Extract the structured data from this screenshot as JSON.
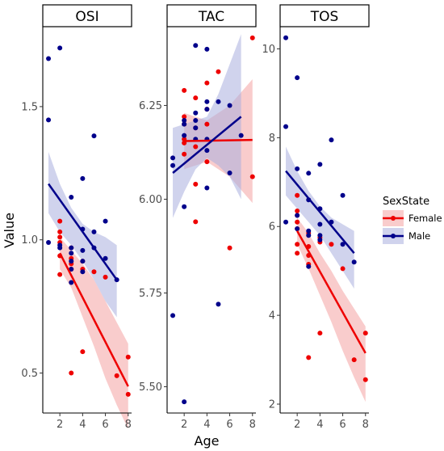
{
  "chart_data": {
    "type": "scatter",
    "xlabel": "Age",
    "ylabel": "Value",
    "legend": {
      "title": "SexState",
      "position": "right",
      "entries": [
        {
          "name": "Female",
          "color": "#ee0000",
          "band_color": "#f4a3a3"
        },
        {
          "name": "Male",
          "color": "#00008b",
          "band_color": "#a9aede"
        }
      ]
    },
    "grid": false,
    "panels": [
      {
        "title": "OSI",
        "xlim": [
          0.5,
          8.3
        ],
        "ylim": [
          0.35,
          1.8
        ],
        "xticks": [
          2,
          4,
          6,
          8
        ],
        "xtick_labels": [
          "2",
          "4",
          "6",
          "8"
        ],
        "yticks": [
          0.5,
          1.0,
          1.5
        ],
        "ytick_labels": [
          "0.5",
          "1.0",
          "1.5"
        ],
        "series": [
          {
            "name": "Female",
            "points": [
              [
                2,
                1.07
              ],
              [
                2,
                1.03
              ],
              [
                2,
                1.01
              ],
              [
                2,
                0.99
              ],
              [
                2,
                0.94
              ],
              [
                2,
                0.87
              ],
              [
                3,
                0.97
              ],
              [
                3,
                0.93
              ],
              [
                3,
                0.91
              ],
              [
                3,
                0.89
              ],
              [
                3,
                0.5
              ],
              [
                4,
                0.92
              ],
              [
                4,
                0.89
              ],
              [
                4,
                0.58
              ],
              [
                5,
                0.88
              ],
              [
                6,
                0.86
              ],
              [
                7,
                0.49
              ],
              [
                8,
                0.56
              ],
              [
                8,
                0.42
              ]
            ],
            "fit": {
              "x": [
                2,
                8
              ],
              "y": [
                0.95,
                0.45
              ]
            },
            "ci_upper": [
              [
                2,
                1.01
              ],
              [
                3,
                0.96
              ],
              [
                4,
                0.91
              ],
              [
                5,
                0.85
              ],
              [
                6,
                0.77
              ],
              [
                7,
                0.69
              ],
              [
                8,
                0.61
              ]
            ],
            "ci_lower": [
              [
                2,
                0.89
              ],
              [
                3,
                0.82
              ],
              [
                4,
                0.71
              ],
              [
                5,
                0.6
              ],
              [
                6,
                0.48
              ],
              [
                7,
                0.38
              ],
              [
                8,
                0.29
              ]
            ]
          },
          {
            "name": "Male",
            "points": [
              [
                1,
                1.68
              ],
              [
                1,
                1.45
              ],
              [
                1,
                0.99
              ],
              [
                2,
                1.72
              ],
              [
                2,
                0.98
              ],
              [
                2,
                0.97
              ],
              [
                3,
                1.16
              ],
              [
                3,
                0.97
              ],
              [
                3,
                0.95
              ],
              [
                3,
                0.92
              ],
              [
                3,
                0.89
              ],
              [
                3,
                0.84
              ],
              [
                4,
                1.23
              ],
              [
                4,
                1.04
              ],
              [
                4,
                0.96
              ],
              [
                4,
                0.92
              ],
              [
                4,
                0.88
              ],
              [
                5,
                1.39
              ],
              [
                5,
                1.03
              ],
              [
                5,
                0.97
              ],
              [
                6,
                1.07
              ],
              [
                6,
                0.93
              ],
              [
                7,
                0.85
              ]
            ],
            "fit": {
              "x": [
                1,
                7
              ],
              "y": [
                1.21,
                0.85
              ]
            },
            "ci_upper": [
              [
                1,
                1.33
              ],
              [
                2,
                1.21
              ],
              [
                3,
                1.12
              ],
              [
                4,
                1.06
              ],
              [
                5,
                1.03
              ],
              [
                6,
                1.01
              ],
              [
                7,
                0.98
              ]
            ],
            "ci_lower": [
              [
                1,
                1.1
              ],
              [
                2,
                1.03
              ],
              [
                3,
                0.98
              ],
              [
                4,
                0.92
              ],
              [
                5,
                0.85
              ],
              [
                6,
                0.77
              ],
              [
                7,
                0.71
              ]
            ]
          }
        ]
      },
      {
        "title": "TAC",
        "xlim": [
          0.5,
          8.3
        ],
        "ylim": [
          5.43,
          6.46
        ],
        "xticks": [
          2,
          4,
          6,
          8
        ],
        "xtick_labels": [
          "2",
          "4",
          "6",
          "8"
        ],
        "yticks": [
          5.5,
          5.75,
          6.0,
          6.25
        ],
        "ytick_labels": [
          "5.50",
          "5.75",
          "6.00",
          "6.25"
        ],
        "series": [
          {
            "name": "Female",
            "points": [
              [
                2,
                6.29
              ],
              [
                2,
                6.22
              ],
              [
                2,
                6.2
              ],
              [
                2,
                6.16
              ],
              [
                2,
                6.15
              ],
              [
                2,
                6.12
              ],
              [
                3,
                6.27
              ],
              [
                3,
                6.19
              ],
              [
                3,
                6.14
              ],
              [
                3,
                6.04
              ],
              [
                3,
                5.94
              ],
              [
                4,
                6.31
              ],
              [
                4,
                6.24
              ],
              [
                4,
                6.2
              ],
              [
                4,
                6.1
              ],
              [
                5,
                6.34
              ],
              [
                6,
                5.87
              ],
              [
                8,
                6.43
              ],
              [
                8,
                6.06
              ]
            ],
            "fit": {
              "x": [
                2,
                8
              ],
              "y": [
                6.155,
                6.158
              ]
            },
            "ci_upper": [
              [
                2,
                6.23
              ],
              [
                4,
                6.21
              ],
              [
                6,
                6.25
              ],
              [
                8,
                6.32
              ]
            ],
            "ci_lower": [
              [
                2,
                6.08
              ],
              [
                4,
                6.1
              ],
              [
                6,
                6.06
              ],
              [
                8,
                5.99
              ]
            ]
          },
          {
            "name": "Male",
            "points": [
              [
                1,
                6.11
              ],
              [
                1,
                6.09
              ],
              [
                1,
                5.69
              ],
              [
                2,
                6.21
              ],
              [
                2,
                6.2
              ],
              [
                2,
                6.17
              ],
              [
                2,
                5.98
              ],
              [
                2,
                5.46
              ],
              [
                3,
                6.41
              ],
              [
                3,
                6.23
              ],
              [
                3,
                6.21
              ],
              [
                3,
                6.19
              ],
              [
                3,
                6.16
              ],
              [
                4,
                6.4
              ],
              [
                4,
                6.26
              ],
              [
                4,
                6.24
              ],
              [
                4,
                6.16
              ],
              [
                4,
                6.13
              ],
              [
                4,
                6.03
              ],
              [
                5,
                6.26
              ],
              [
                5,
                5.72
              ],
              [
                6,
                6.25
              ],
              [
                6,
                6.07
              ],
              [
                7,
                6.17
              ]
            ],
            "fit": {
              "x": [
                1,
                7
              ],
              "y": [
                6.07,
                6.22
              ]
            },
            "ci_upper": [
              [
                1,
                6.19
              ],
              [
                2,
                6.2
              ],
              [
                3,
                6.21
              ],
              [
                4,
                6.22
              ],
              [
                5,
                6.28
              ],
              [
                6,
                6.36
              ],
              [
                7,
                6.44
              ]
            ],
            "ci_lower": [
              [
                1,
                5.95
              ],
              [
                2,
                6.02
              ],
              [
                3,
                6.08
              ],
              [
                4,
                6.11
              ],
              [
                5,
                6.09
              ],
              [
                6,
                6.06
              ],
              [
                7,
                6.0
              ]
            ]
          }
        ]
      },
      {
        "title": "TOS",
        "xlim": [
          0.5,
          8.3
        ],
        "ylim": [
          1.8,
          10.5
        ],
        "xticks": [
          2,
          4,
          6,
          8
        ],
        "xtick_labels": [
          "2",
          "4",
          "6",
          "8"
        ],
        "yticks": [
          2,
          4,
          6,
          8,
          10
        ],
        "ytick_labels": [
          "2",
          "4",
          "6",
          "8",
          "10"
        ],
        "series": [
          {
            "name": "Female",
            "points": [
              [
                2,
                6.7
              ],
              [
                2,
                6.35
              ],
              [
                2,
                6.25
              ],
              [
                2,
                6.1
              ],
              [
                2,
                5.95
              ],
              [
                2,
                5.6
              ],
              [
                2,
                5.4
              ],
              [
                3,
                5.85
              ],
              [
                3,
                5.55
              ],
              [
                3,
                5.35
              ],
              [
                3,
                5.15
              ],
              [
                3,
                3.05
              ],
              [
                4,
                5.75
              ],
              [
                4,
                5.65
              ],
              [
                4,
                3.6
              ],
              [
                5,
                5.6
              ],
              [
                6,
                5.05
              ],
              [
                7,
                3.0
              ],
              [
                8,
                3.6
              ],
              [
                8,
                2.55
              ]
            ],
            "fit": {
              "x": [
                2,
                8
              ],
              "y": [
                5.9,
                3.15
              ]
            },
            "ci_upper": [
              [
                2,
                6.2
              ],
              [
                3,
                5.85
              ],
              [
                4,
                5.4
              ],
              [
                5,
                5.0
              ],
              [
                6,
                4.55
              ],
              [
                7,
                4.15
              ],
              [
                8,
                3.75
              ]
            ],
            "ci_lower": [
              [
                2,
                5.6
              ],
              [
                3,
                5.05
              ],
              [
                4,
                4.45
              ],
              [
                5,
                3.85
              ],
              [
                6,
                3.2
              ],
              [
                7,
                2.6
              ],
              [
                8,
                2.05
              ]
            ]
          },
          {
            "name": "Male",
            "points": [
              [
                1,
                10.25
              ],
              [
                1,
                8.25
              ],
              [
                1,
                6.1
              ],
              [
                2,
                9.35
              ],
              [
                2,
                7.3
              ],
              [
                2,
                6.25
              ],
              [
                2,
                5.95
              ],
              [
                3,
                7.2
              ],
              [
                3,
                6.6
              ],
              [
                3,
                5.9
              ],
              [
                3,
                5.8
              ],
              [
                3,
                5.1
              ],
              [
                4,
                7.4
              ],
              [
                4,
                6.4
              ],
              [
                4,
                6.05
              ],
              [
                4,
                5.8
              ],
              [
                4,
                5.7
              ],
              [
                5,
                7.95
              ],
              [
                5,
                6.1
              ],
              [
                6,
                6.7
              ],
              [
                6,
                5.6
              ],
              [
                7,
                5.2
              ]
            ],
            "fit": {
              "x": [
                1,
                7
              ],
              "y": [
                7.25,
                5.4
              ]
            },
            "ci_upper": [
              [
                1,
                7.8
              ],
              [
                2,
                7.25
              ],
              [
                3,
                6.8
              ],
              [
                4,
                6.45
              ],
              [
                5,
                6.2
              ],
              [
                6,
                6.05
              ],
              [
                7,
                5.9
              ]
            ],
            "ci_lower": [
              [
                1,
                6.7
              ],
              [
                2,
                6.4
              ],
              [
                3,
                6.1
              ],
              [
                4,
                5.8
              ],
              [
                5,
                5.4
              ],
              [
                6,
                5.0
              ],
              [
                7,
                4.6
              ]
            ]
          }
        ]
      }
    ]
  }
}
